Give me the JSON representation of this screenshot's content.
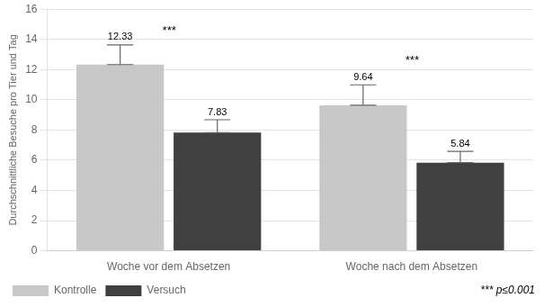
{
  "chart_data": {
    "type": "bar",
    "categories": [
      "Woche vor dem Absetzen",
      "Woche nach dem Absetzen"
    ],
    "series": [
      {
        "name": "Kontrolle",
        "color": "#c8c8c8",
        "values": [
          12.33,
          9.64
        ],
        "errors": [
          1.3,
          1.35
        ]
      },
      {
        "name": "Versuch",
        "color": "#404040",
        "values": [
          7.83,
          5.84
        ],
        "errors": [
          0.85,
          0.75
        ]
      }
    ],
    "ylabel": "Durchschnittliche Besuche pro Tier und Tag",
    "ylim": [
      0,
      16
    ],
    "yticks": [
      0,
      2,
      4,
      6,
      8,
      10,
      12,
      14,
      16
    ],
    "grid": true,
    "legend": "bottom",
    "data_labels": true,
    "annotations": [
      {
        "text": "***",
        "category": "Woche vor dem Absetzen",
        "y": 14.2
      },
      {
        "text": "***",
        "category": "Woche nach dem Absetzen",
        "y": 12.2
      }
    ],
    "note": "*** p≤0.001"
  }
}
